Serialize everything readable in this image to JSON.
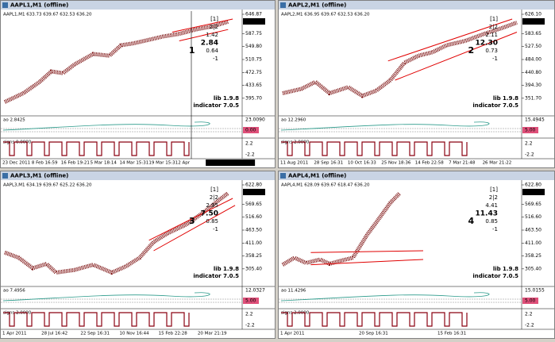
{
  "windows": [
    {
      "title": "AAPL1,M1 (offline)",
      "header": "AAPL1,M1 633.73 639.67 632.53 636.20",
      "price_labels": [
        "646.87",
        "587.75",
        "549.80",
        "510.75",
        "472.75",
        "433.65",
        "395.70"
      ],
      "current_price": "636.20",
      "ao_label": "ao 2.8425",
      "ao_levels": [
        "23.0090",
        "0.00"
      ],
      "signs_label": "signs 0.0000",
      "signs_levels": [
        "2.2",
        "-2.2"
      ],
      "dates": [
        "23 Dec 2011",
        "8 Feb 16:59",
        "16 Feb 19:21",
        "5 Mar 18:14",
        "14 Mar 15:31",
        "19 Mar 15:31",
        "2 Apr",
        "2012.04.09 17:58"
      ],
      "info": [
        "[1]",
        "2|2",
        "1.42",
        "2.84",
        "0.64",
        "-1"
      ],
      "number": "1",
      "lib": "lib 1.9.8",
      "indicator": "indicator 7.0.5"
    },
    {
      "title": "AAPL2,M1 (offline)",
      "header": "AAPL2,M1 636.95 639.67 632.53 636.20",
      "price_labels": [
        "626.10",
        "583.65",
        "527.50",
        "484.00",
        "440.80",
        "394.30",
        "351.70"
      ],
      "current_price": "636.20",
      "ao_label": "ao 12.2960",
      "ao_levels": [
        "15.4945",
        "5.00"
      ],
      "signs_label": "signs 2.0000",
      "signs_levels": [
        "2.2",
        "-2.2"
      ],
      "dates": [
        "11 Aug 2011",
        "28 Sep 16:31",
        "10 Oct 16:33",
        "25 Nov 18:36",
        "14 Feb 22:58",
        "7 Mar 21:48",
        "26 Mar 21:22"
      ],
      "info": [
        "[1]",
        "2|2",
        "2.11",
        "12.30",
        "0.73",
        "-1"
      ],
      "number": "2",
      "lib": "lib 1.9.8",
      "indicator": "indicator 7.0.5"
    },
    {
      "title": "AAPL3,M1 (offline)",
      "header": "AAPL3,M1 634.19 639.67 625.22 636.20",
      "price_labels": [
        "622.80",
        "569.65",
        "516.60",
        "463.50",
        "411.00",
        "358.25",
        "305.40"
      ],
      "current_price": "636.20",
      "ao_label": "ao 7.4956",
      "ao_levels": [
        "12.0327",
        "5.00"
      ],
      "signs_label": "signs 2.0000",
      "signs_levels": [
        "2.2",
        "-2.2"
      ],
      "dates": [
        "1 Apr 2011",
        "28 Jul 16:42",
        "22 Sep 16:31",
        "10 Nov 16:44",
        "15 Feb 22:28",
        "20 Mar 21:19"
      ],
      "info": [
        "[1]",
        "2|2",
        "2.95",
        "7.50",
        "0.85",
        "-1"
      ],
      "number": "3",
      "lib": "lib 1.9.8",
      "indicator": "indicator 7.0.5"
    },
    {
      "title": "AAPL4,M1 (offline)",
      "header": "AAPL4,M1 628.09 639.67 618.47 636.20",
      "price_labels": [
        "622.80",
        "569.65",
        "516.60",
        "463.50",
        "411.00",
        "358.25",
        "305.40"
      ],
      "current_price": "636.20",
      "ao_label": "ao 11.4296",
      "ao_levels": [
        "15.0155",
        "5.00"
      ],
      "signs_label": "signs 2.0000",
      "signs_levels": [
        "2.2",
        "-2.2"
      ],
      "dates": [
        "1 Apr 2011",
        "20 Sep 16:31",
        "15 Feb 16:31"
      ],
      "info": [
        "[1]",
        "2|2",
        "4.41",
        "11.43",
        "0.85",
        "-1"
      ],
      "number": "4",
      "lib": "lib 1.9.8",
      "indicator": "indicator 7.0.5"
    }
  ]
}
